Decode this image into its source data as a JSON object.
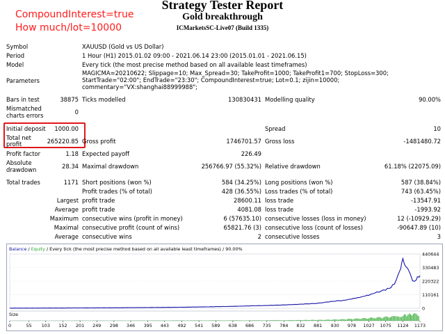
{
  "overlay": {
    "line1": "CompoundInterest=true",
    "line2": "How much/lot=10000"
  },
  "header": {
    "title": "Strategy Tester Report",
    "subtitle": "Gold breakthrough",
    "server": "ICMarketsSC-Live07 (Build 1335)"
  },
  "info": {
    "symbol_label": "Symbol",
    "symbol_value": "XAUUSD (Gold vs US Dollar)",
    "period_label": "Period",
    "period_value": "1 Hour (H1) 2015.01.02 09:00 - 2021.06.14 23:00 (2015.01.01 - 2021.06.15)",
    "model_label": "Model",
    "model_value": "Every tick (the most precise method based on all available least timeframes)",
    "parameters_label": "Parameters",
    "parameters_line1": "MAGICMA=20210622; Slippage=10; Max_Spread=30; TakeProfit=1000; TakeProfit1=700; StopLoss=300;",
    "parameters_line2": "StartTrade=\"02:00\"; EndTrade=\"23:30\"; CompoundInterest=true; Lot=0.1; zijin=10000;",
    "parameters_line3": "commentary=\"VX:shanghai88999988\";"
  },
  "stats": {
    "bars_label": "Bars in test",
    "bars_value": "38875",
    "ticks_label": "Ticks modelled",
    "ticks_value": "130830431",
    "quality_label": "Modelling quality",
    "quality_value": "90.00%",
    "mismatch_label1": "Mismatched",
    "mismatch_label2": "charts errors",
    "mismatch_value": "0",
    "initial_label": "Initial deposit",
    "initial_value": "1000.00",
    "spread_label": "Spread",
    "spread_value": "10",
    "net_label1": "Total net",
    "net_label2": "profit",
    "net_value": "265220.85",
    "gross_profit_label": "Gross profit",
    "gross_profit_value": "1746701.57",
    "gross_loss_label": "Gross loss",
    "gross_loss_value": "-1481480.72",
    "pf_label": "Profit factor",
    "pf_value": "1.18",
    "ep_label": "Expected payoff",
    "ep_value": "226.49",
    "abs_dd_label1": "Absolute",
    "abs_dd_label2": "drawdown",
    "abs_dd_value": "28.34",
    "max_dd_label": "Maximal drawdown",
    "max_dd_value": "256766.97 (55.32%)",
    "rel_dd_label": "Relative drawdown",
    "rel_dd_value": "61.18% (22075.09)",
    "trades_label": "Total trades",
    "trades_value": "1171",
    "short_label": "Short positions (won %)",
    "short_value": "584 (34.25%)",
    "long_label": "Long positions (won %)",
    "long_value": "587 (38.84%)",
    "pt_label": "Profit trades (% of total)",
    "pt_value": "428 (36.55%)",
    "lt_label": "Loss trades (% of total)",
    "lt_value": "743 (63.45%)",
    "largest_label": "Largest",
    "largest_profit_label": "profit trade",
    "largest_profit_value": "28600.11",
    "largest_loss_label": "loss trade",
    "largest_loss_value": "-13547.91",
    "average_label": "Average",
    "avg_profit_label": "profit trade",
    "avg_profit_value": "4081.08",
    "avg_loss_label": "loss trade",
    "avg_loss_value": "-1993.92",
    "maximum_label": "Maximum",
    "max_cw_label": "consecutive wins (profit in money)",
    "max_cw_value": "6 (57635.10)",
    "max_cl_label": "consecutive losses (loss in money)",
    "max_cl_value": "12 (-10929.29)",
    "maximal_label": "Maximal",
    "maxl_cp_label": "consecutive profit (count of wins)",
    "maxl_cp_value": "65821.76 (3)",
    "maxl_cl_label": "consecutive loss (count of losses)",
    "maxl_cl_value": "-90647.89 (10)",
    "average2_label": "Average",
    "avg_cw_label": "consecutive wins",
    "avg_cw_value": "2",
    "avg_cl_label": "consecutive losses",
    "avg_cl_value": "3"
  },
  "chart_data": {
    "type": "line",
    "legend_balance": "Balance",
    "legend_sep": " / ",
    "legend_equity": "Equity",
    "legend_rest": " / Every tick (the most precise method based on all available least timeframes) / 90.00%",
    "size_label": "Size",
    "balance_color": "#1515a6",
    "equity_color": "#2ea82e",
    "yticks": [
      "440644",
      "330483",
      "220322",
      "110161",
      "0"
    ],
    "xticks": [
      "0",
      "55",
      "103",
      "152",
      "201",
      "249",
      "298",
      "346",
      "395",
      "443",
      "492",
      "541",
      "589",
      "638",
      "686",
      "735",
      "784",
      "832",
      "881",
      "930",
      "978",
      "1027",
      "1075",
      "1124",
      "1173"
    ],
    "ylim": [
      0,
      440644
    ],
    "xlim": [
      0,
      1173
    ],
    "balance": [
      [
        0,
        1000
      ],
      [
        55,
        1200
      ],
      [
        103,
        1500
      ],
      [
        152,
        1800
      ],
      [
        201,
        2500
      ],
      [
        249,
        3000
      ],
      [
        298,
        3800
      ],
      [
        346,
        4800
      ],
      [
        395,
        5800
      ],
      [
        443,
        7000
      ],
      [
        492,
        8500
      ],
      [
        541,
        10500
      ],
      [
        589,
        13000
      ],
      [
        638,
        15500
      ],
      [
        686,
        19000
      ],
      [
        735,
        22500
      ],
      [
        784,
        27000
      ],
      [
        832,
        33000
      ],
      [
        881,
        40000
      ],
      [
        900,
        48000
      ],
      [
        930,
        58000
      ],
      [
        955,
        64000
      ],
      [
        978,
        76000
      ],
      [
        1000,
        88000
      ],
      [
        1027,
        108000
      ],
      [
        1050,
        130000
      ],
      [
        1075,
        150000
      ],
      [
        1090,
        170000
      ],
      [
        1100,
        200000
      ],
      [
        1110,
        260000
      ],
      [
        1118,
        320000
      ],
      [
        1124,
        395000
      ],
      [
        1130,
        360000
      ],
      [
        1138,
        330000
      ],
      [
        1145,
        290000
      ],
      [
        1152,
        230000
      ],
      [
        1158,
        212000
      ],
      [
        1163,
        240000
      ],
      [
        1168,
        255000
      ],
      [
        1173,
        265220
      ]
    ],
    "size": [
      [
        0,
        2
      ],
      [
        100,
        2
      ],
      [
        200,
        3
      ],
      [
        300,
        3
      ],
      [
        400,
        4
      ],
      [
        500,
        5
      ],
      [
        600,
        5
      ],
      [
        700,
        6
      ],
      [
        800,
        8
      ],
      [
        850,
        10
      ],
      [
        900,
        12
      ],
      [
        950,
        18
      ],
      [
        1000,
        28
      ],
      [
        1050,
        40
      ],
      [
        1100,
        55
      ],
      [
        1124,
        70
      ],
      [
        1150,
        85
      ],
      [
        1173,
        80
      ]
    ]
  }
}
